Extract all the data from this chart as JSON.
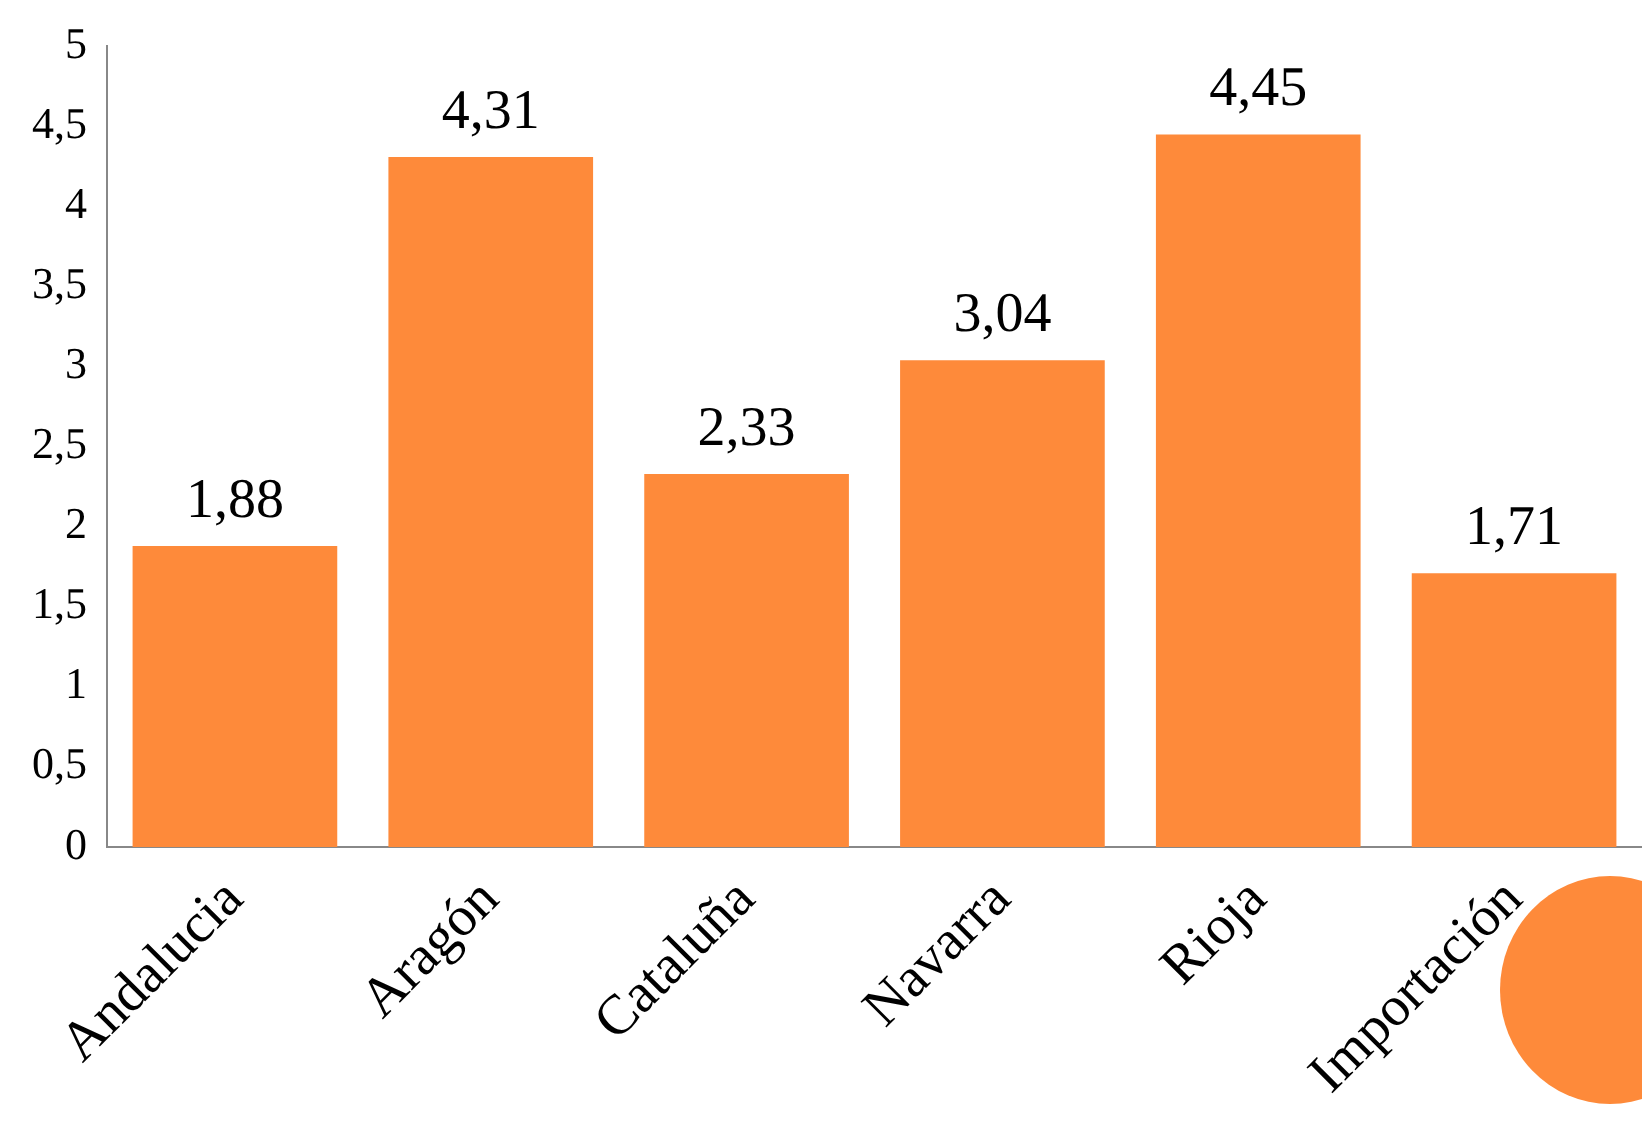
{
  "chart_data": {
    "type": "bar",
    "categories": [
      "Andalucia",
      "Aragón",
      "Cataluña",
      "Navarra",
      "Rioja",
      "Importación"
    ],
    "values": [
      1.88,
      4.31,
      2.33,
      3.04,
      4.45,
      1.71
    ],
    "value_labels": [
      "1,88",
      "4,31",
      "2,33",
      "3,04",
      "4,45",
      "1,71"
    ],
    "color": "#fe8a3a",
    "ylim": [
      0,
      5
    ],
    "yticks": [
      0,
      {
        "value": 0.5,
        "label": "0,5"
      },
      1,
      {
        "value": 1.5,
        "label": "1,5"
      },
      2,
      {
        "value": 2.5,
        "label": "2,5"
      },
      3,
      {
        "value": 3.5,
        "label": "3,5"
      },
      4,
      {
        "value": 4.5,
        "label": "4,5"
      },
      5
    ],
    "grid": false,
    "legend": false
  }
}
